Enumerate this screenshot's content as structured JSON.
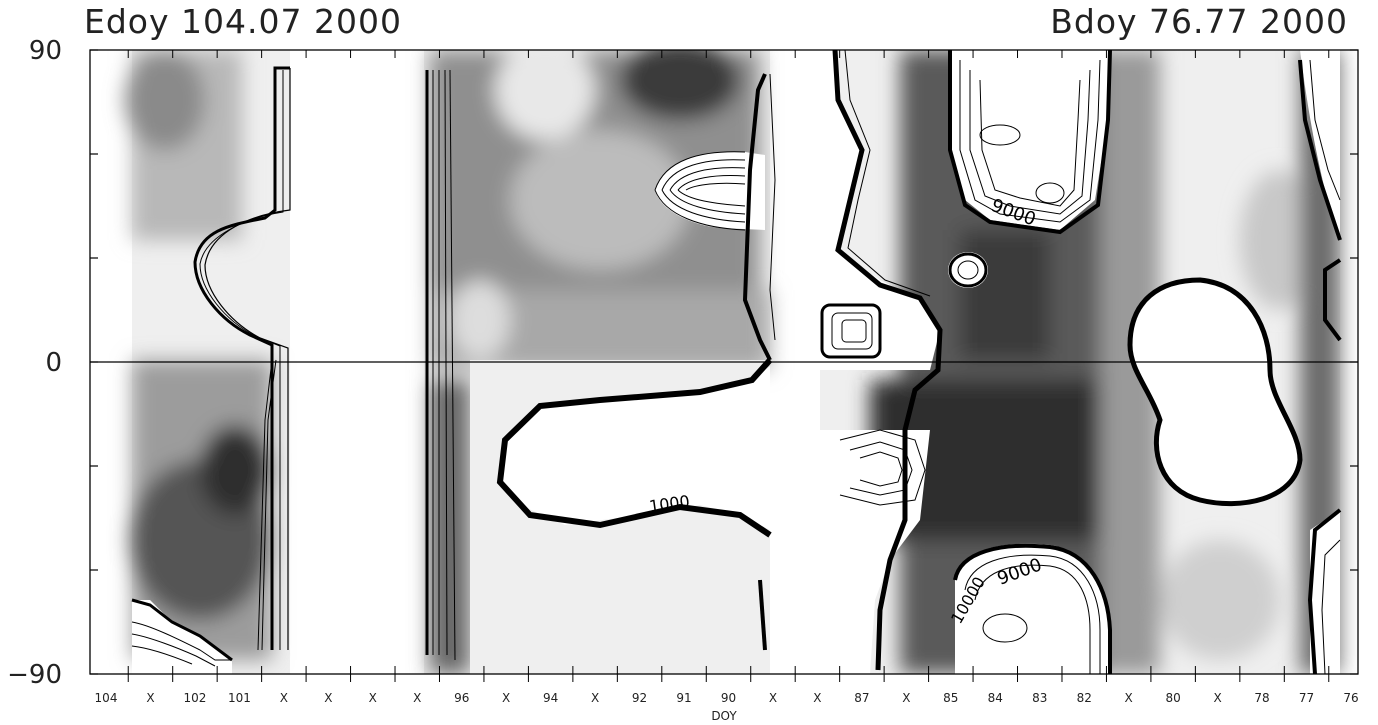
{
  "header": {
    "start_label": "Edoy 104.07 2000",
    "end_label": "Bdoy   76.77 2000"
  },
  "chart_data": {
    "type": "heatmap",
    "title": "",
    "xlabel": "DOY",
    "ylabel": "",
    "x_range": [
      104.07,
      76.77
    ],
    "ylim": [
      -90,
      90
    ],
    "x_axis_reversed": true,
    "y_ticks": [
      "90",
      "0",
      "-90"
    ],
    "y_tick_values": [
      90,
      0,
      -90
    ],
    "x_tick_labels": [
      "104",
      "X",
      "102",
      "101",
      "X",
      "X",
      "X",
      "X",
      "96",
      "X",
      "94",
      "X",
      "92",
      "91",
      "90",
      "X",
      "X",
      "87",
      "X",
      "85",
      "84",
      "83",
      "82",
      "X",
      "80",
      "X",
      "78",
      "77",
      "76"
    ],
    "contour_labels": [
      "9000",
      "9000",
      "10000",
      "1000"
    ],
    "grid": false,
    "colormap": "grayscale",
    "zero_line": true
  }
}
